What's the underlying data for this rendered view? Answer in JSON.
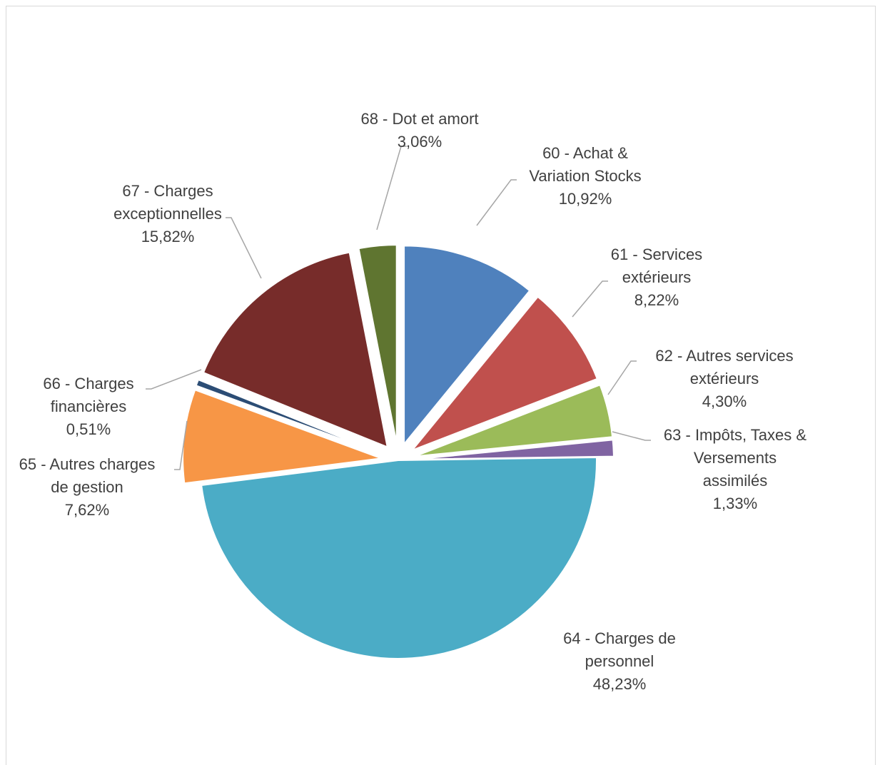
{
  "chart_data": {
    "type": "pie",
    "title": "",
    "exploded": true,
    "data_labels": "category name and percentage",
    "legend": "none",
    "slices": [
      {
        "label_lines": [
          "60 - Achat &",
          "Variation Stocks"
        ],
        "percent_label": "10,92%",
        "value": 10.92,
        "color": "#4F81BD"
      },
      {
        "label_lines": [
          "61 - Services",
          "extérieurs"
        ],
        "percent_label": "8,22%",
        "value": 8.22,
        "color": "#C0504D"
      },
      {
        "label_lines": [
          "62 - Autres services",
          "extérieurs"
        ],
        "percent_label": "4,30%",
        "value": 4.3,
        "color": "#9BBB59"
      },
      {
        "label_lines": [
          "63 - Impôts, Taxes &",
          "Versements",
          "assimilés"
        ],
        "percent_label": "1,33%",
        "value": 1.33,
        "color": "#8064A2"
      },
      {
        "label_lines": [
          "64 - Charges de",
          "personnel"
        ],
        "percent_label": "48,23%",
        "value": 48.23,
        "color": "#4BACC6"
      },
      {
        "label_lines": [
          "65 - Autres charges",
          "de gestion"
        ],
        "percent_label": "7,62%",
        "value": 7.62,
        "color": "#F79646"
      },
      {
        "label_lines": [
          "66 - Charges",
          "financières"
        ],
        "percent_label": "0,51%",
        "value": 0.51,
        "color": "#2C4D75"
      },
      {
        "label_lines": [
          "67 - Charges",
          "exceptionnelles"
        ],
        "percent_label": "15,82%",
        "value": 15.82,
        "color": "#772C2A"
      },
      {
        "label_lines": [
          "68 - Dot et amort"
        ],
        "percent_label": "3,06%",
        "value": 3.06,
        "color": "#5F7530"
      }
    ]
  }
}
